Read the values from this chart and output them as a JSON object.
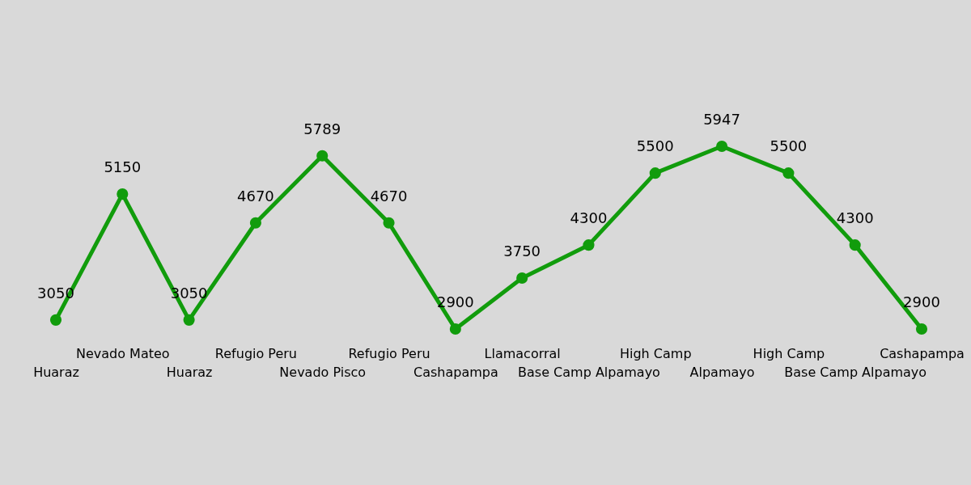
{
  "chart_data": {
    "type": "line",
    "categories": [
      "Huaraz",
      "Nevado Mateo",
      "Huaraz",
      "Refugio Peru",
      "Nevado Pisco",
      "Refugio Peru",
      "Cashapampa",
      "Llamacorral",
      "Base Camp Alpamayo",
      "High Camp",
      "Alpamayo",
      "High Camp",
      "Base Camp Alpamayo",
      "Cashapampa"
    ],
    "series": [
      {
        "color": "#119c0c",
        "values": [
          3050,
          5150,
          3050,
          4670,
          5789,
          4670,
          2900,
          3750,
          4300,
          5500,
          5947,
          5500,
          4300,
          2900
        ]
      }
    ],
    "data_labels": true,
    "marker": "circle",
    "line_style": "solid"
  }
}
